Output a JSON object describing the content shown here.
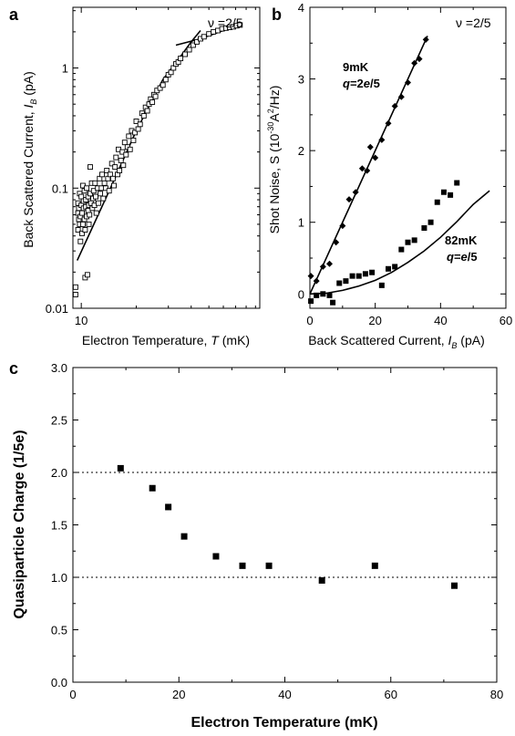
{
  "chart_data": [
    {
      "panel": "a",
      "type": "scatter",
      "annotation": "ν =2/5",
      "xlabel": "Electron Temperature, T (mK)",
      "ylabel": "Back Scattered Current, I_B (pA)",
      "xscale": "log",
      "yscale": "log",
      "xlim": [
        9,
        95
      ],
      "ylim": [
        0.01,
        3.2
      ],
      "xticks": [
        10
      ],
      "yticks": [
        0.01,
        0.1,
        1
      ],
      "ytick_labels": [
        "0.01",
        "0.1",
        "1"
      ],
      "xtick_labels": [
        "10"
      ],
      "marker": "open-square",
      "points": [
        [
          9.3,
          0.013
        ],
        [
          9.3,
          0.015
        ],
        [
          9.6,
          0.062
        ],
        [
          9.6,
          0.075
        ],
        [
          9.6,
          0.045
        ],
        [
          9.7,
          0.055
        ],
        [
          9.7,
          0.068
        ],
        [
          9.8,
          0.09
        ],
        [
          9.8,
          0.05
        ],
        [
          9.9,
          0.036
        ],
        [
          9.9,
          0.058
        ],
        [
          10,
          0.072
        ],
        [
          10,
          0.085
        ],
        [
          10.1,
          0.042
        ],
        [
          10.1,
          0.062
        ],
        [
          10.2,
          0.105
        ],
        [
          10.2,
          0.05
        ],
        [
          10.3,
          0.068
        ],
        [
          10.3,
          0.078
        ],
        [
          10.4,
          0.055
        ],
        [
          10.4,
          0.095
        ],
        [
          10.5,
          0.018
        ],
        [
          10.5,
          0.045
        ],
        [
          10.6,
          0.07
        ],
        [
          10.6,
          0.08
        ],
        [
          10.7,
          0.058
        ],
        [
          10.7,
          0.1
        ],
        [
          10.8,
          0.019
        ],
        [
          10.9,
          0.065
        ],
        [
          10.9,
          0.085
        ],
        [
          11,
          0.072
        ],
        [
          11,
          0.05
        ],
        [
          11.1,
          0.06
        ],
        [
          11.2,
          0.09
        ],
        [
          11.2,
          0.15
        ],
        [
          11.3,
          0.075
        ],
        [
          11.4,
          0.11
        ],
        [
          11.5,
          0.068
        ],
        [
          11.6,
          0.082
        ],
        [
          11.7,
          0.095
        ],
        [
          11.8,
          0.072
        ],
        [
          11.9,
          0.11
        ],
        [
          12,
          0.085
        ],
        [
          12.1,
          0.062
        ],
        [
          12.3,
          0.1
        ],
        [
          12.4,
          0.075
        ],
        [
          12.6,
          0.12
        ],
        [
          12.7,
          0.09
        ],
        [
          12.9,
          0.1
        ],
        [
          13,
          0.13
        ],
        [
          13.2,
          0.082
        ],
        [
          13.4,
          0.11
        ],
        [
          13.6,
          0.1
        ],
        [
          13.8,
          0.14
        ],
        [
          14,
          0.12
        ],
        [
          14.2,
          0.095
        ],
        [
          14.4,
          0.13
        ],
        [
          14.7,
          0.16
        ],
        [
          14.9,
          0.12
        ],
        [
          15.1,
          0.105
        ],
        [
          15.3,
          0.15
        ],
        [
          15.5,
          0.18
        ],
        [
          15.8,
          0.13
        ],
        [
          16,
          0.21
        ],
        [
          16.2,
          0.14
        ],
        [
          16.5,
          0.17
        ],
        [
          16.8,
          0.2
        ],
        [
          17,
          0.155
        ],
        [
          17.3,
          0.24
        ],
        [
          17.6,
          0.19
        ],
        [
          17.9,
          0.22
        ],
        [
          18.2,
          0.27
        ],
        [
          18.5,
          0.21
        ],
        [
          18.9,
          0.3
        ],
        [
          19.3,
          0.25
        ],
        [
          19.7,
          0.29
        ],
        [
          20,
          0.36
        ],
        [
          20.5,
          0.31
        ],
        [
          21,
          0.34
        ],
        [
          21.5,
          0.42
        ],
        [
          22,
          0.4
        ],
        [
          22.5,
          0.47
        ],
        [
          23,
          0.44
        ],
        [
          23.5,
          0.5
        ],
        [
          24,
          0.55
        ],
        [
          24.5,
          0.52
        ],
        [
          25,
          0.6
        ],
        [
          25.5,
          0.58
        ],
        [
          26,
          0.65
        ],
        [
          27,
          0.68
        ],
        [
          28,
          0.72
        ],
        [
          29,
          0.8
        ],
        [
          30,
          0.88
        ],
        [
          31,
          0.92
        ],
        [
          32,
          1.0
        ],
        [
          33,
          1.08
        ],
        [
          34,
          1.12
        ],
        [
          35,
          1.2
        ],
        [
          37,
          1.3
        ],
        [
          39,
          1.42
        ],
        [
          41,
          1.55
        ],
        [
          43,
          1.65
        ],
        [
          45,
          1.75
        ],
        [
          47,
          1.82
        ],
        [
          50,
          1.92
        ],
        [
          53,
          2.0
        ],
        [
          56,
          2.05
        ],
        [
          59,
          2.12
        ],
        [
          62,
          2.15
        ],
        [
          65,
          2.18
        ],
        [
          68,
          2.2
        ],
        [
          71,
          2.25
        ],
        [
          74,
          2.28
        ]
      ],
      "fit_lines": [
        [
          [
            9.5,
            0.025
          ],
          [
            14,
            0.09
          ],
          [
            20,
            0.3
          ],
          [
            28,
            0.8
          ],
          [
            35,
            1.25
          ],
          [
            40,
            1.65
          ],
          [
            45,
            2.05
          ]
        ],
        [
          [
            33,
            1.55
          ],
          [
            45,
            1.75
          ],
          [
            60,
            2.05
          ],
          [
            76,
            2.3
          ]
        ]
      ]
    },
    {
      "panel": "b",
      "type": "scatter",
      "annotation": "ν =2/5",
      "xlabel": "Back Scattered Current, I_B (pA)",
      "ylabel": "Shot Noise, S (10^-30 A^2/Hz)",
      "xlim": [
        0,
        60
      ],
      "ylim": [
        -0.2,
        4
      ],
      "xticks": [
        0,
        20,
        40,
        60
      ],
      "yticks": [
        0,
        1,
        2,
        3,
        4
      ],
      "series": [
        {
          "name": "9 mK",
          "label_lines": [
            "9mK",
            "q=2e/5"
          ],
          "marker": "diamond",
          "points": [
            [
              0.3,
              0.25
            ],
            [
              2,
              0.18
            ],
            [
              4,
              0.38
            ],
            [
              6,
              0.42
            ],
            [
              8,
              0.72
            ],
            [
              10,
              0.95
            ],
            [
              12,
              1.32
            ],
            [
              14,
              1.42
            ],
            [
              16,
              1.75
            ],
            [
              17.5,
              1.72
            ],
            [
              18.5,
              2.05
            ],
            [
              20,
              1.9
            ],
            [
              22,
              2.15
            ],
            [
              24,
              2.38
            ],
            [
              26,
              2.62
            ],
            [
              28,
              2.75
            ],
            [
              30,
              2.95
            ],
            [
              32,
              3.22
            ],
            [
              33.5,
              3.28
            ],
            [
              35.5,
              3.55
            ]
          ],
          "fit": [
            [
              0,
              0
            ],
            [
              36,
              3.6
            ]
          ]
        },
        {
          "name": "82 mK",
          "label_lines": [
            "82mK",
            "q=e/5"
          ],
          "marker": "square",
          "points": [
            [
              0.3,
              -0.1
            ],
            [
              2,
              -0.02
            ],
            [
              4,
              0.0
            ],
            [
              6,
              -0.02
            ],
            [
              7,
              -0.12
            ],
            [
              9,
              0.15
            ],
            [
              11,
              0.18
            ],
            [
              13,
              0.25
            ],
            [
              15,
              0.25
            ],
            [
              17,
              0.28
            ],
            [
              19,
              0.3
            ],
            [
              22,
              0.12
            ],
            [
              24,
              0.35
            ],
            [
              26,
              0.38
            ],
            [
              28,
              0.62
            ],
            [
              30,
              0.72
            ],
            [
              32,
              0.75
            ],
            [
              35,
              0.92
            ],
            [
              37,
              1.0
            ],
            [
              39,
              1.28
            ],
            [
              41,
              1.42
            ],
            [
              43,
              1.38
            ],
            [
              45,
              1.55
            ]
          ],
          "fit": [
            [
              0,
              0
            ],
            [
              5,
              0.01
            ],
            [
              10,
              0.05
            ],
            [
              15,
              0.11
            ],
            [
              20,
              0.19
            ],
            [
              25,
              0.3
            ],
            [
              30,
              0.44
            ],
            [
              35,
              0.6
            ],
            [
              40,
              0.79
            ],
            [
              45,
              1.01
            ],
            [
              50,
              1.25
            ],
            [
              55,
              1.44
            ]
          ]
        }
      ]
    },
    {
      "panel": "c",
      "type": "scatter",
      "xlabel": "Electron Temperature (mK)",
      "ylabel": "Quasiparticle Charge (1/5e)",
      "xlim": [
        0,
        80
      ],
      "ylim": [
        0,
        3
      ],
      "xticks": [
        0,
        20,
        40,
        60,
        80
      ],
      "yticks": [
        "0.0",
        "0.5",
        "1.0",
        "1.5",
        "2.0",
        "2.5",
        "3.0"
      ],
      "reference_lines": [
        2.0,
        1.0
      ],
      "marker": "square",
      "points": [
        [
          9,
          2.04
        ],
        [
          15,
          1.85
        ],
        [
          18,
          1.67
        ],
        [
          21,
          1.39
        ],
        [
          27,
          1.2
        ],
        [
          32,
          1.11
        ],
        [
          37,
          1.11
        ],
        [
          47,
          0.97
        ],
        [
          57,
          1.11
        ],
        [
          72,
          0.92
        ]
      ]
    }
  ],
  "panel_labels": [
    "a",
    "b",
    "c"
  ]
}
